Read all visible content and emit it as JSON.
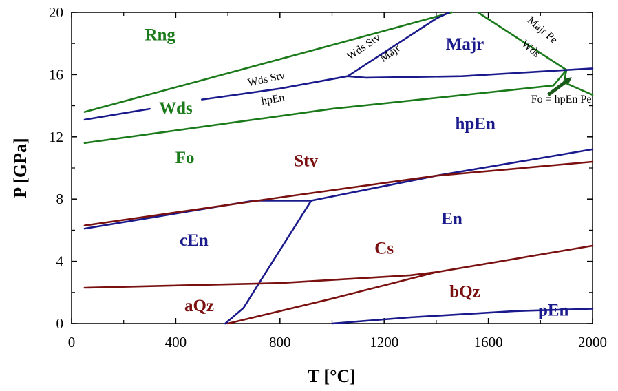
{
  "chart_data": {
    "type": "line",
    "title": "",
    "xlabel": "T [°C]",
    "ylabel": "P [GPa]",
    "xlim": [
      0,
      2000
    ],
    "ylim": [
      0,
      20
    ],
    "x_ticks": [
      "0",
      "400",
      "800",
      "1200",
      "1600",
      "2000"
    ],
    "y_ticks": [
      "0",
      "4",
      "8",
      "12",
      "16",
      "20"
    ],
    "grid": false,
    "colors": {
      "green": "#1a7a1a",
      "blue": "#1a1a8c",
      "red": "#7a1010",
      "arrow": "#1a5a1a"
    },
    "series": [
      {
        "color": "green",
        "points": [
          [
            50,
            13.6
          ],
          [
            1000,
            17.9
          ],
          [
            1460,
            20.0
          ]
        ]
      },
      {
        "color": "green",
        "points": [
          [
            1560,
            20.0
          ],
          [
            1900,
            16.3
          ],
          [
            1850,
            15.3
          ]
        ]
      },
      {
        "color": "green",
        "points": [
          [
            1900,
            16.3
          ],
          [
            1890,
            15.5
          ],
          [
            2000,
            14.7
          ]
        ]
      },
      {
        "color": "green",
        "points": [
          [
            50,
            11.6
          ],
          [
            1000,
            13.8
          ],
          [
            1850,
            15.3
          ]
        ]
      },
      {
        "color": "blue",
        "points": [
          [
            50,
            13.1
          ],
          [
            300,
            13.8
          ]
        ]
      },
      {
        "color": "blue",
        "points": [
          [
            500,
            14.4
          ],
          [
            800,
            15.1
          ],
          [
            1060,
            15.9
          ]
        ]
      },
      {
        "color": "blue",
        "points": [
          [
            1060,
            15.9
          ],
          [
            1400,
            19.6
          ],
          [
            1450,
            20.0
          ]
        ]
      },
      {
        "color": "blue",
        "points": [
          [
            1060,
            15.9
          ],
          [
            1130,
            15.8
          ],
          [
            1500,
            15.9
          ],
          [
            2000,
            16.4
          ]
        ]
      },
      {
        "color": "blue",
        "points": [
          [
            50,
            6.1
          ],
          [
            700,
            7.9
          ],
          [
            920,
            7.9
          ]
        ]
      },
      {
        "color": "blue",
        "points": [
          [
            920,
            7.9
          ],
          [
            1400,
            9.5
          ],
          [
            2000,
            11.2
          ]
        ]
      },
      {
        "color": "blue",
        "points": [
          [
            590,
            0.0
          ],
          [
            660,
            1.0
          ],
          [
            720,
            2.6
          ],
          [
            920,
            7.9
          ]
        ]
      },
      {
        "color": "blue",
        "points": [
          [
            1000,
            0.0
          ],
          [
            1300,
            0.4
          ],
          [
            1700,
            0.8
          ],
          [
            2000,
            0.95
          ]
        ]
      },
      {
        "color": "red",
        "points": [
          [
            50,
            6.3
          ],
          [
            800,
            8.1
          ],
          [
            1400,
            9.5
          ],
          [
            2000,
            10.4
          ]
        ]
      },
      {
        "color": "red",
        "points": [
          [
            50,
            2.3
          ],
          [
            800,
            2.6
          ],
          [
            1300,
            3.1
          ],
          [
            1400,
            3.3
          ]
        ]
      },
      {
        "color": "red",
        "points": [
          [
            600,
            0.0
          ],
          [
            1000,
            1.6
          ],
          [
            1400,
            3.3
          ],
          [
            2000,
            5.0
          ]
        ]
      }
    ],
    "field_labels": [
      {
        "text": "Rng",
        "x": 340,
        "y": 18.2,
        "color": "green"
      },
      {
        "text": "Wds",
        "x": 400,
        "y": 13.5,
        "color": "green"
      },
      {
        "text": "Fo",
        "x": 435,
        "y": 10.3,
        "color": "green"
      },
      {
        "text": "Majr",
        "x": 1510,
        "y": 17.6,
        "color": "blue"
      },
      {
        "text": "hpEn",
        "x": 1550,
        "y": 12.5,
        "color": "blue"
      },
      {
        "text": "En",
        "x": 1460,
        "y": 6.4,
        "color": "blue"
      },
      {
        "text": "cEn",
        "x": 470,
        "y": 5.0,
        "color": "blue"
      },
      {
        "text": "pEn",
        "x": 1850,
        "y": 0.5,
        "color": "blue"
      },
      {
        "text": "Stv",
        "x": 900,
        "y": 10.1,
        "color": "red"
      },
      {
        "text": "Cs",
        "x": 1200,
        "y": 4.5,
        "color": "red"
      },
      {
        "text": "aQz",
        "x": 490,
        "y": 0.8,
        "color": "red"
      },
      {
        "text": "bQz",
        "x": 1510,
        "y": 1.7,
        "color": "red"
      }
    ],
    "line_labels": [
      {
        "text": "Wds Stv",
        "x": 750,
        "y": 15.5,
        "rotate": -12
      },
      {
        "text": "hpEn",
        "x": 775,
        "y": 14.2,
        "rotate": -10
      },
      {
        "text": "Wds Stv",
        "x": 1128,
        "y": 17.6,
        "rotate": -34
      },
      {
        "text": "Majr",
        "x": 1230,
        "y": 17.2,
        "rotate": -36
      },
      {
        "text": "Majr Pe",
        "x": 1800,
        "y": 18.7,
        "rotate": 40
      },
      {
        "text": "Wds",
        "x": 1755,
        "y": 17.5,
        "rotate": 40
      },
      {
        "text": "Fo = hpEn Pe",
        "x": 1880,
        "y": 14.2,
        "rotate": 0
      }
    ],
    "arrow": {
      "from": [
        1830,
        14.7
      ],
      "to": [
        1910,
        15.7
      ]
    }
  }
}
